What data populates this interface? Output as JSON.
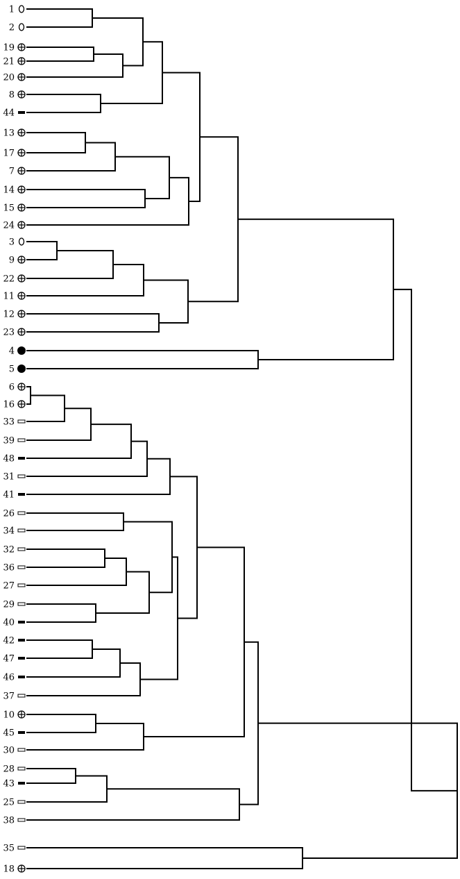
{
  "leaves": [
    {
      "label": "1",
      "marker": "open-ellipse"
    },
    {
      "label": "2",
      "marker": "open-ellipse"
    },
    {
      "label": "19",
      "marker": "circle-plus"
    },
    {
      "label": "21",
      "marker": "circle-plus"
    },
    {
      "label": "20",
      "marker": "circle-plus"
    },
    {
      "label": "8",
      "marker": "circle-plus"
    },
    {
      "label": "44",
      "marker": "filled-bar"
    },
    {
      "label": "13",
      "marker": "circle-plus"
    },
    {
      "label": "17",
      "marker": "circle-plus"
    },
    {
      "label": "7",
      "marker": "circle-plus"
    },
    {
      "label": "14",
      "marker": "circle-plus"
    },
    {
      "label": "15",
      "marker": "circle-plus"
    },
    {
      "label": "24",
      "marker": "circle-plus"
    },
    {
      "label": "3",
      "marker": "open-ellipse"
    },
    {
      "label": "9",
      "marker": "circle-plus"
    },
    {
      "label": "22",
      "marker": "circle-plus"
    },
    {
      "label": "11",
      "marker": "circle-plus"
    },
    {
      "label": "12",
      "marker": "circle-plus"
    },
    {
      "label": "23",
      "marker": "circle-plus"
    },
    {
      "label": "4",
      "marker": "filled-circle"
    },
    {
      "label": "5",
      "marker": "filled-circle"
    },
    {
      "label": "6",
      "marker": "circle-plus"
    },
    {
      "label": "16",
      "marker": "circle-plus"
    },
    {
      "label": "33",
      "marker": "open-bar"
    },
    {
      "label": "39",
      "marker": "open-bar"
    },
    {
      "label": "48",
      "marker": "filled-bar"
    },
    {
      "label": "31",
      "marker": "open-bar"
    },
    {
      "label": "41",
      "marker": "filled-bar"
    },
    {
      "label": "26",
      "marker": "open-bar"
    },
    {
      "label": "34",
      "marker": "open-bar"
    },
    {
      "label": "32",
      "marker": "open-bar"
    },
    {
      "label": "36",
      "marker": "open-bar"
    },
    {
      "label": "27",
      "marker": "open-bar"
    },
    {
      "label": "29",
      "marker": "open-bar"
    },
    {
      "label": "40",
      "marker": "filled-bar"
    },
    {
      "label": "42",
      "marker": "filled-bar"
    },
    {
      "label": "47",
      "marker": "filled-bar"
    },
    {
      "label": "46",
      "marker": "filled-bar"
    },
    {
      "label": "37",
      "marker": "open-bar"
    },
    {
      "label": "10",
      "marker": "circle-plus"
    },
    {
      "label": "45",
      "marker": "filled-bar"
    },
    {
      "label": "30",
      "marker": "open-bar"
    },
    {
      "label": "28",
      "marker": "open-bar"
    },
    {
      "label": "43",
      "marker": "filled-bar"
    },
    {
      "label": "25",
      "marker": "open-bar"
    },
    {
      "label": "38",
      "marker": "open-bar"
    },
    {
      "label": "35",
      "marker": "open-bar"
    },
    {
      "label": "18",
      "marker": "circle-plus"
    }
  ],
  "colors": {
    "line": "#000000",
    "background": "#ffffff"
  }
}
